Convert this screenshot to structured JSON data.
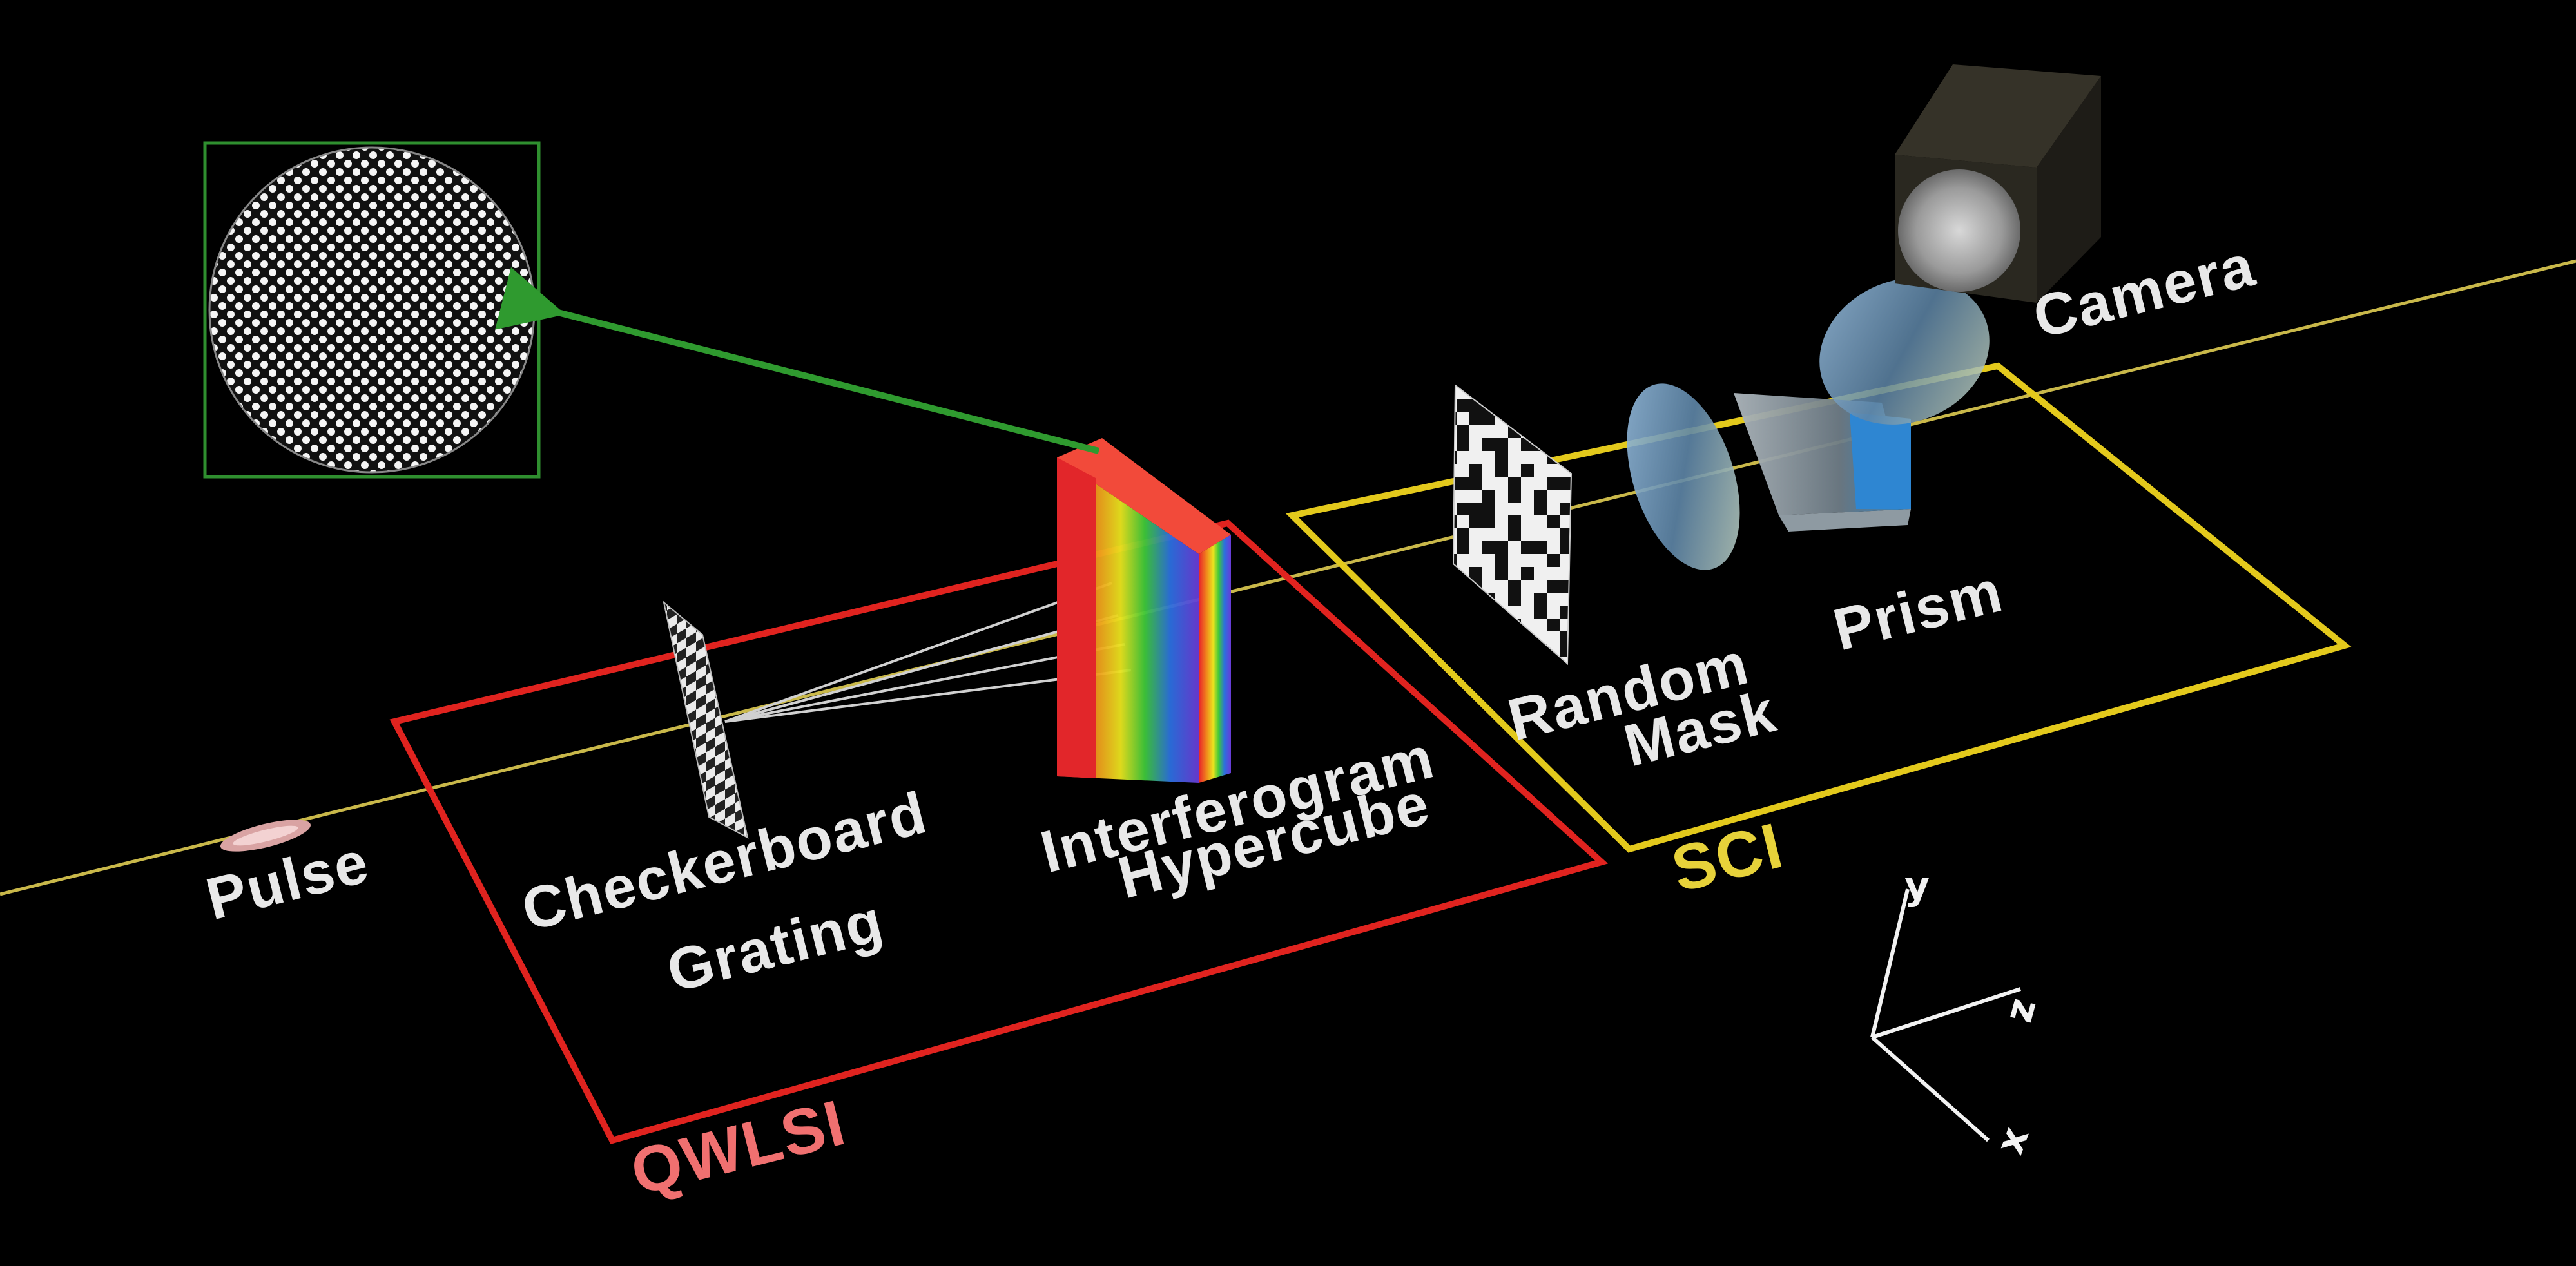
{
  "labels": {
    "pulse": "Pulse",
    "checkerboard_line1": "Checkerboard",
    "checkerboard_line2": "Grating",
    "interferogram_line1": "Interferogram",
    "interferogram_line2": "Hypercube",
    "random_line1": "Random",
    "random_line2": "Mask",
    "prism": "Prism",
    "camera": "Camera",
    "qwlsi": "QWLSI",
    "sci": "SCI"
  },
  "axes": {
    "x": "x",
    "y": "y",
    "z": "z"
  },
  "colors": {
    "background": "#000000",
    "beam": "#c9b84a",
    "qwlsi_box": "#e0231f",
    "sci_box": "#e3c91c",
    "inset_frame": "#2f8f2f",
    "arrow": "#2f9a2f"
  }
}
